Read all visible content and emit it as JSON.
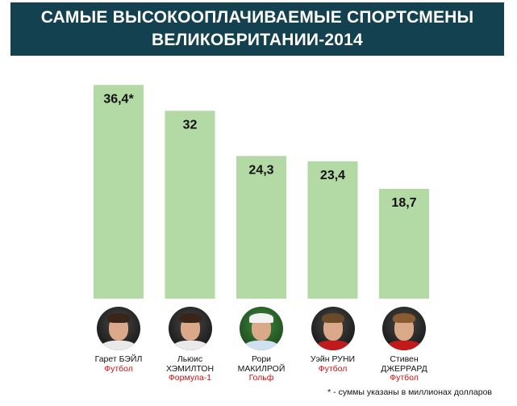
{
  "title_lines": [
    "САМЫЕ ВЫСОКООПЛАЧИВАЕМЫЕ СПОРТСМЕНЫ",
    "ВЕЛИКОБРИТАНИИ-2014"
  ],
  "chart_data": {
    "type": "bar",
    "title": "САМЫЕ ВЫСОКООПЛАЧИВАЕМЫЕ СПОРТСМЕНЫ ВЕЛИКОБРИТАНИИ-2014",
    "categories": [
      "Гарет БЭЙЛ",
      "Льюис ХЭМИЛТОН",
      "Рори МАКИЛРОЙ",
      "Уэйн РУНИ",
      "Стивен ДЖЕРРАРД"
    ],
    "values": [
      36.4,
      32,
      24.3,
      23.4,
      18.7
    ],
    "value_labels": [
      "36,4*",
      "32",
      "24,3",
      "23,4",
      "18,7"
    ],
    "ylim": [
      0,
      38.5
    ],
    "bar_color": "#b3d9a4",
    "grid": false
  },
  "athletes": [
    {
      "name_lines": [
        "Гарет БЭЙЛ"
      ],
      "sport": "Футбол",
      "icon": "player-photo-icon"
    },
    {
      "name_lines": [
        "Льюис",
        "ХЭМИЛТОН"
      ],
      "sport": "Формула-1",
      "icon": "player-photo-icon"
    },
    {
      "name_lines": [
        "Рори",
        "МАКИЛРОЙ"
      ],
      "sport": "Гольф",
      "icon": "player-photo-icon"
    },
    {
      "name_lines": [
        "Уэйн РУНИ"
      ],
      "sport": "Футбол",
      "icon": "player-photo-icon"
    },
    {
      "name_lines": [
        "Стивен",
        "ДЖЕРРАРД"
      ],
      "sport": "Футбол",
      "icon": "player-photo-icon"
    }
  ],
  "colors": {
    "banner": "#13414f",
    "sport_text": "#d01010"
  },
  "footnote": "* - суммы указаны в миллионах долларов"
}
